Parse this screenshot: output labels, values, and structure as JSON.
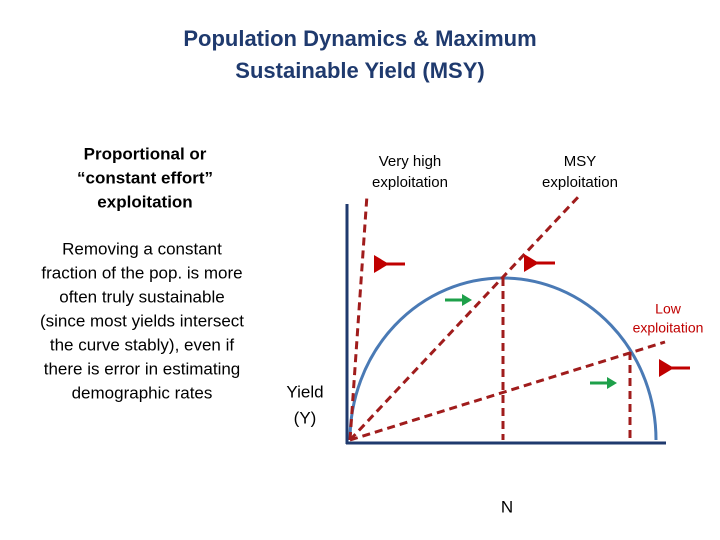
{
  "title": {
    "lines": [
      "Population Dynamics & Maximum",
      "Sustainable Yield (MSY)"
    ]
  },
  "heading": {
    "lines": [
      "Proportional or",
      "“constant effort”",
      "exploitation"
    ]
  },
  "body": {
    "lines": [
      "Removing a constant",
      "fraction of the pop. is more",
      "often truly sustainable",
      "(since most yields intersect",
      "the curve stably), even if",
      "there is error in estimating",
      "demographic rates"
    ]
  },
  "diagram": {
    "very_high_label": [
      "Very high",
      "exploitation"
    ],
    "msy_label": [
      "MSY",
      "exploitation"
    ],
    "low_label": [
      "Low",
      "exploitation"
    ],
    "y_axis_label": [
      "Yield",
      "(Y)"
    ],
    "x_axis_label": "N"
  }
}
